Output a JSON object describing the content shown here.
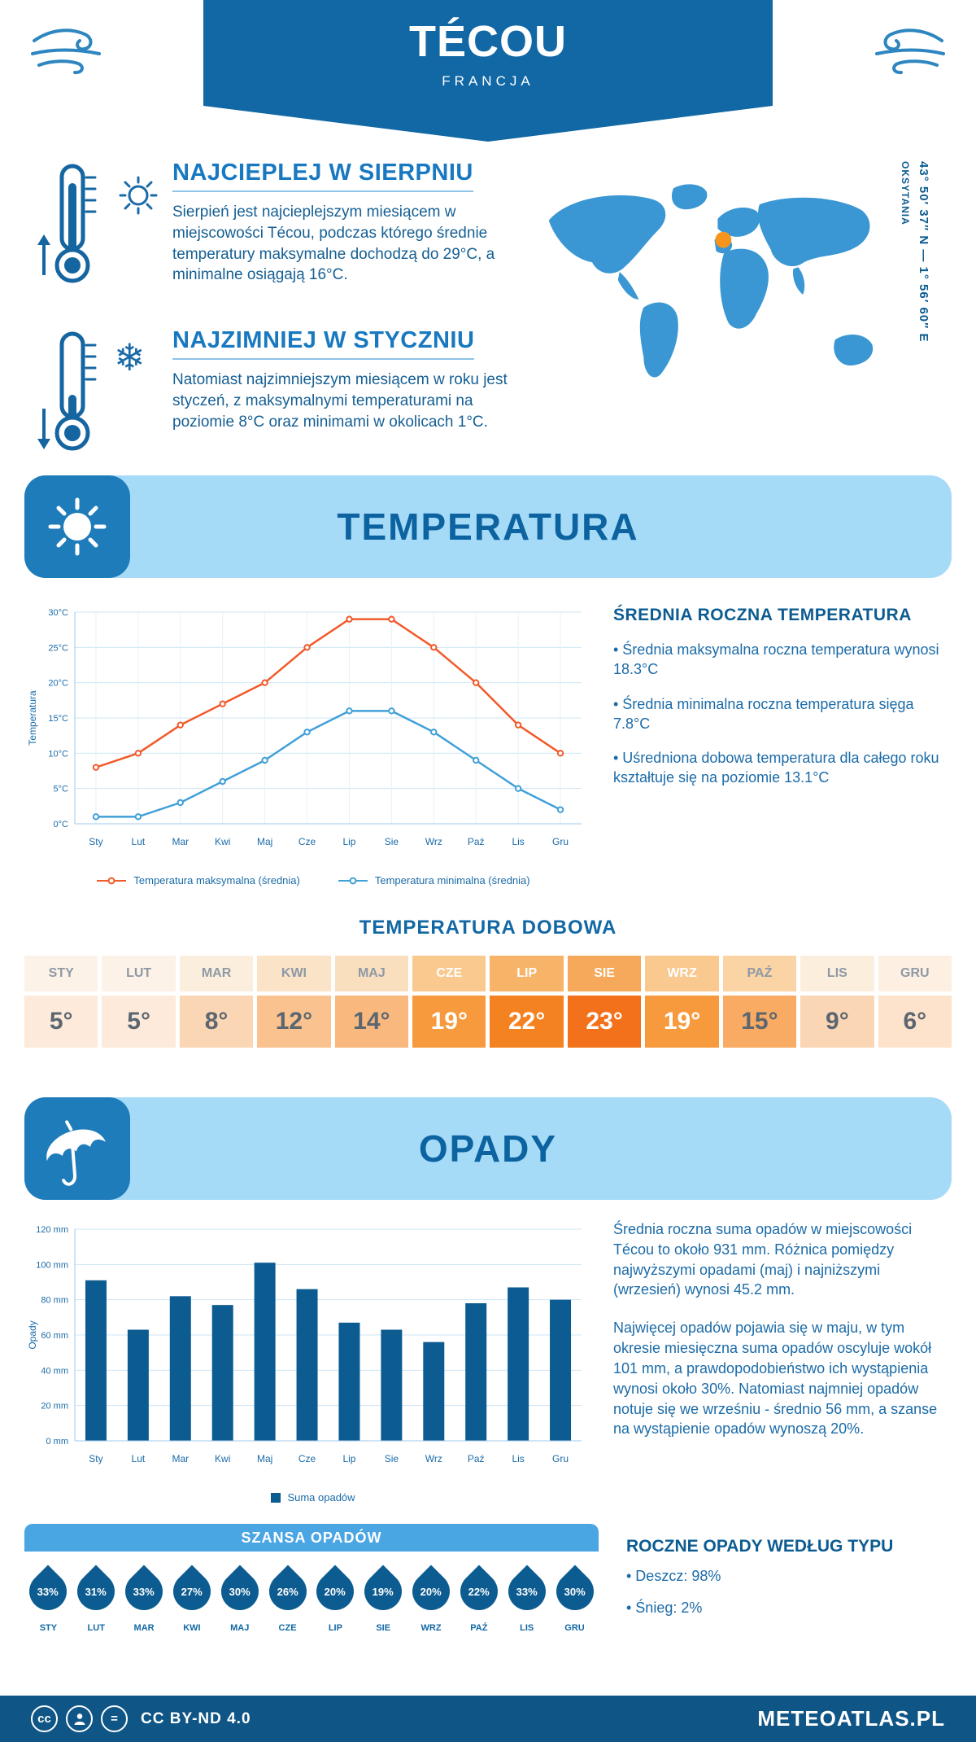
{
  "header": {
    "title": "TÉCOU",
    "subtitle": "FRANCJA"
  },
  "warm": {
    "title": "NAJCIEPLEJ W SIERPNIU",
    "body": "Sierpień jest najcieplejszym miesiącem w miejscowości Técou, podczas którego średnie temperatury maksymalne dochodzą do 29°C, a minimalne osiągają 16°C."
  },
  "cold": {
    "title": "NAJZIMNIEJ W STYCZNIU",
    "body": "Natomiast najzimniejszym miesiącem w roku jest styczeń, z maksymalnymi temperaturami na poziomie 8°C oraz minimami w okolicach 1°C."
  },
  "map": {
    "coordinates": "43° 50′ 37″ N — 1° 56′ 60″ E",
    "region": "OKSYTANIA"
  },
  "temperature": {
    "section_title": "TEMPERATURA",
    "right_title": "ŚREDNIA ROCZNA TEMPERATURA",
    "bullets": [
      "• Średnia maksymalna roczna temperatura wynosi 18.3°C",
      "• Średnia minimalna roczna temperatura sięga 7.8°C",
      "• Uśredniona dobowa temperatura dla całego roku kształtuje się na poziomie 13.1°C"
    ]
  },
  "daily_table": {
    "title": "TEMPERATURA DOBOWA",
    "months": [
      "STY",
      "LUT",
      "MAR",
      "KWI",
      "MAJ",
      "CZE",
      "LIP",
      "SIE",
      "WRZ",
      "PAŹ",
      "LIS",
      "GRU"
    ],
    "values": [
      "5°",
      "5°",
      "8°",
      "12°",
      "14°",
      "19°",
      "22°",
      "23°",
      "19°",
      "15°",
      "9°",
      "6°"
    ],
    "header_bg": [
      "#fdf2e7",
      "#fdf2e7",
      "#fceedd",
      "#fbe3c8",
      "#fadfbf",
      "#f9c98f",
      "#f7b469",
      "#f6a95a",
      "#f9c98f",
      "#fad4a4",
      "#fceedd",
      "#fdf0e2"
    ],
    "header_fg": [
      "#8e99a5",
      "#8e99a5",
      "#8e99a5",
      "#8e99a5",
      "#8e99a5",
      "#ffffff",
      "#ffffff",
      "#ffffff",
      "#ffffff",
      "#8e99a5",
      "#8e99a5",
      "#8e99a5"
    ],
    "value_bg": [
      "#fdeada",
      "#fdeada",
      "#fbd6b4",
      "#fac28f",
      "#f9b87e",
      "#f79a3d",
      "#f58220",
      "#f4711c",
      "#f79a3d",
      "#f9ab64",
      "#fbd6b4",
      "#fde3cb"
    ],
    "value_fg": [
      "#5b6670",
      "#5b6670",
      "#5b6670",
      "#5b6670",
      "#5b6670",
      "#ffffff",
      "#ffffff",
      "#ffffff",
      "#ffffff",
      "#5b6670",
      "#5b6670",
      "#5b6670"
    ]
  },
  "precip": {
    "section_title": "OPADY",
    "paragraphs": [
      "Średnia roczna suma opadów w miejscowości Técou to około 931 mm. Różnica pomiędzy najwyższymi opadami (maj) i najniższymi (wrzesień) wynosi 45.2 mm.",
      "Najwięcej opadów pojawia się w maju, w tym okresie miesięczna suma opadów oscyluje wokół 101 mm, a prawdopodobieństwo ich wystąpienia wynosi około 30%. Natomiast najmniej opadów notuje się we wrześniu - średnio 56 mm, a szanse na wystąpienie opadów wynoszą 20%."
    ]
  },
  "chance": {
    "title": "SZANSA OPADÓW",
    "months": [
      "STY",
      "LUT",
      "MAR",
      "KWI",
      "MAJ",
      "CZE",
      "LIP",
      "SIE",
      "WRZ",
      "PAŹ",
      "LIS",
      "GRU"
    ],
    "values": [
      "33%",
      "31%",
      "33%",
      "27%",
      "30%",
      "26%",
      "20%",
      "19%",
      "20%",
      "22%",
      "33%",
      "30%"
    ]
  },
  "rain_type": {
    "title": "ROCZNE OPADY WEDŁUG TYPU",
    "bullets": [
      "• Deszcz: 98%",
      "• Śnieg: 2%"
    ]
  },
  "footer": {
    "cc": "cc",
    "nd": "=",
    "license": "CC BY-ND 4.0",
    "brand": "METEOATLAS.PL"
  },
  "icons": {
    "snowflake": "❄"
  },
  "colors": {
    "ribbon": "#1168a5",
    "band_bg": "#a6dbf8",
    "tile_bg": "#1f7cbb",
    "heading_blue": "#0d5c91",
    "text_blue": "#1b6ba8",
    "accent_orange": "#f15a29",
    "min_line_blue": "#41a0d8",
    "map_blue": "#3a97d3",
    "marker_orange": "#f7941d",
    "drop_blue": "#0d5c91",
    "szansa_bar": "#4aa5e3",
    "footer_bg": "#0f5586"
  },
  "chart_data": [
    {
      "type": "line",
      "categories": [
        "Sty",
        "Lut",
        "Mar",
        "Kwi",
        "Maj",
        "Cze",
        "Lip",
        "Sie",
        "Wrz",
        "Paź",
        "Lis",
        "Gru"
      ],
      "series": [
        {
          "name": "Temperatura maksymalna (średnia)",
          "color": "#f15a29",
          "values": [
            8,
            10,
            14,
            17,
            20,
            25,
            29,
            29,
            25,
            20,
            14,
            10
          ]
        },
        {
          "name": "Temperatura minimalna (średnia)",
          "color": "#41a0d8",
          "values": [
            1,
            1,
            3,
            6,
            9,
            13,
            16,
            16,
            13,
            9,
            5,
            2
          ]
        }
      ],
      "ylabel": "Temperatura",
      "ylim": [
        0,
        30
      ],
      "ytick_step": 5,
      "ytick_suffix": "°C",
      "grid": true,
      "legend_position": "bottom"
    },
    {
      "type": "bar",
      "categories": [
        "Sty",
        "Lut",
        "Mar",
        "Kwi",
        "Maj",
        "Cze",
        "Lip",
        "Sie",
        "Wrz",
        "Paź",
        "Lis",
        "Gru"
      ],
      "series": [
        {
          "name": "Suma opadów",
          "color": "#0d5c91",
          "values": [
            91,
            63,
            82,
            77,
            101,
            86,
            67,
            63,
            56,
            78,
            87,
            80
          ]
        }
      ],
      "ylabel": "Opady",
      "ylim": [
        0,
        120
      ],
      "ytick_step": 20,
      "ytick_suffix": " mm",
      "grid": true,
      "legend_position": "bottom"
    }
  ]
}
